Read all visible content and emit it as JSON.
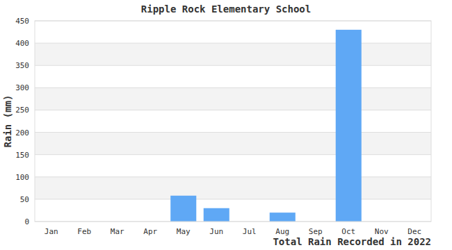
{
  "chart_data": {
    "type": "bar",
    "title": "Ripple Rock Elementary School",
    "y_label": "Rain (mm)",
    "x_label": "Total Rain Recorded in 2022",
    "categories": [
      "Jan",
      "Feb",
      "Mar",
      "Apr",
      "May",
      "Jun",
      "Jul",
      "Aug",
      "Sep",
      "Oct",
      "Nov",
      "Dec"
    ],
    "values": [
      0,
      0,
      0,
      0,
      58,
      30,
      0,
      20,
      0,
      430,
      0,
      0
    ],
    "color": "#5fa8f5",
    "ylim": [
      0,
      450
    ],
    "yticks": [
      0,
      50,
      100,
      150,
      200,
      250,
      300,
      350,
      400,
      450
    ],
    "grid": true
  }
}
